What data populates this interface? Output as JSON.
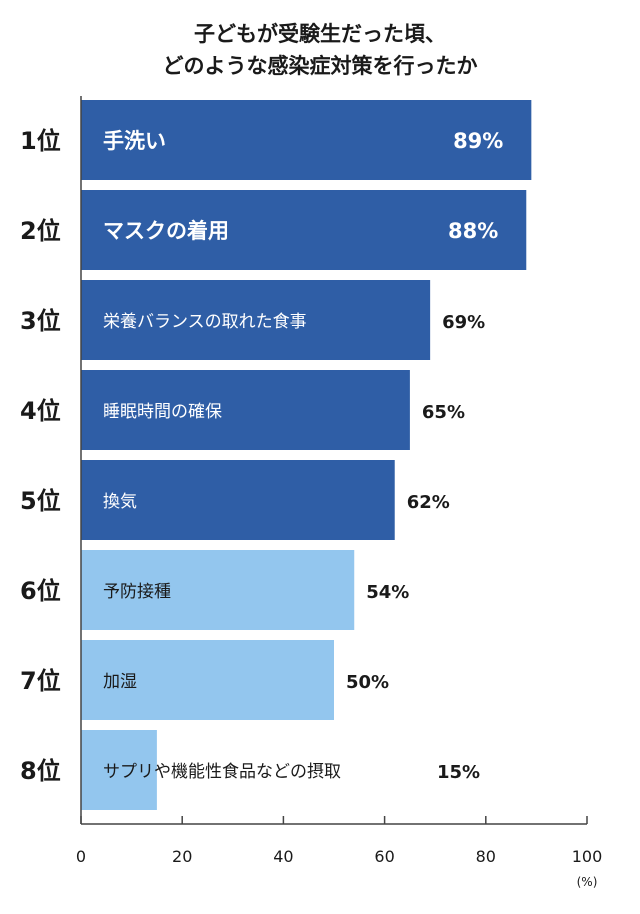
{
  "chart_data": {
    "type": "bar",
    "orientation": "horizontal",
    "title_lines": [
      "子どもが受験生だった頃、",
      "どのような感染症対策を行ったか"
    ],
    "categories": [
      "手洗い",
      "マスクの着用",
      "栄養バランスの取れた食事",
      "睡眠時間の確保",
      "換気",
      "予防接種",
      "加湿",
      "サプリや機能性食品などの摂取"
    ],
    "ranks": [
      "1位",
      "2位",
      "3位",
      "4位",
      "5位",
      "6位",
      "7位",
      "8位"
    ],
    "values": [
      89,
      88,
      69,
      65,
      62,
      54,
      50,
      15
    ],
    "value_labels": [
      "89%",
      "88%",
      "69%",
      "65%",
      "62%",
      "54%",
      "50%",
      "15%"
    ],
    "bar_colors": [
      "#2f5ea6",
      "#2f5ea6",
      "#2f5ea6",
      "#2f5ea6",
      "#2f5ea6",
      "#93c6ee",
      "#93c6ee",
      "#93c6ee"
    ],
    "xlim": [
      0,
      100
    ],
    "xticks": [
      0,
      20,
      40,
      60,
      80,
      100
    ],
    "xunit": "(%)",
    "grid": false
  }
}
